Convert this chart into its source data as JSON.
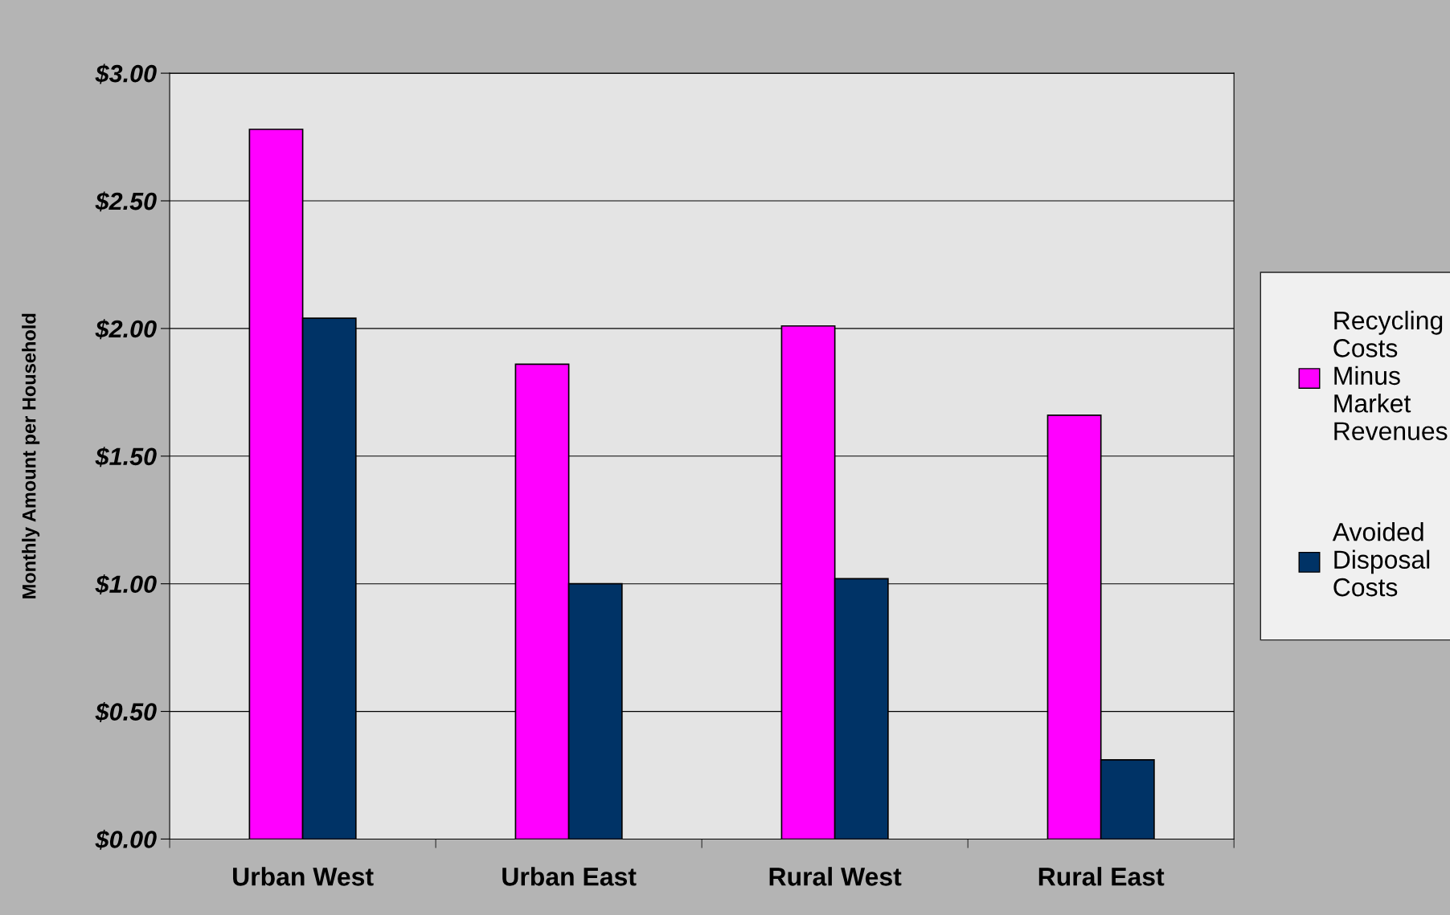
{
  "chart_data": {
    "type": "bar",
    "ylabel": "Monthly Amount per Household",
    "categories": [
      "Urban West",
      "Urban East",
      "Rural West",
      "Rural East"
    ],
    "series": [
      {
        "name": "Recycling Costs Minus Market Revenues",
        "color": "#ff00ff",
        "values": [
          2.78,
          1.86,
          2.01,
          1.66
        ]
      },
      {
        "name": "Avoided Disposal Costs",
        "color": "#003366",
        "values": [
          2.04,
          1.0,
          1.02,
          0.31
        ]
      }
    ],
    "ylim": [
      0,
      3
    ],
    "yticks": [
      {
        "value": 0,
        "label": "$0.00"
      },
      {
        "value": 0.5,
        "label": "$0.50"
      },
      {
        "value": 1,
        "label": "$1.00"
      },
      {
        "value": 1.5,
        "label": "$1.50"
      },
      {
        "value": 2,
        "label": "$2.00"
      },
      {
        "value": 2.5,
        "label": "$2.50"
      },
      {
        "value": 3,
        "label": "$3.00"
      }
    ],
    "grid": "y",
    "legend": "right"
  }
}
